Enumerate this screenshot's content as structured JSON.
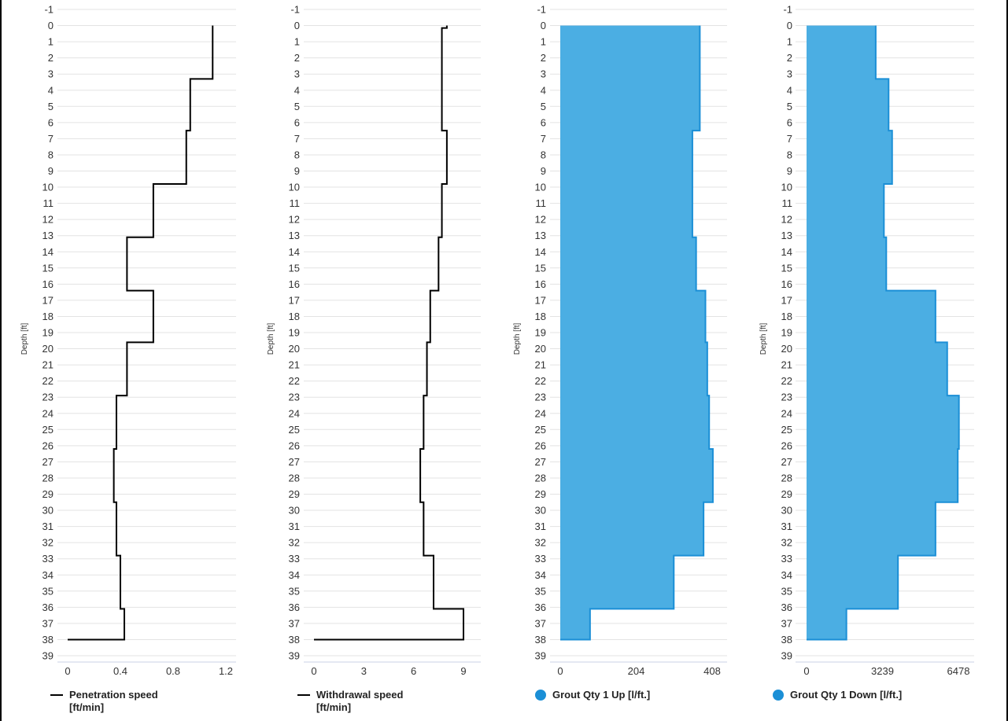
{
  "chart_data": [
    {
      "type": "line",
      "step": true,
      "orientation": "vertical-depth",
      "series": [
        {
          "name": "Penetration speed\n[ft/min]",
          "color": "#000000"
        }
      ],
      "xlabel": "",
      "ylabel": "Depth [ft]",
      "xlim": [
        0,
        1.2
      ],
      "xticks": [
        0,
        0.4,
        0.8,
        1.2
      ],
      "xtick_labels": [
        "0",
        "0.4",
        "0.8",
        "1.2"
      ],
      "ylim": [
        -1,
        39
      ],
      "steps": [
        [
          0,
          1.1
        ],
        [
          3.3,
          0.93
        ],
        [
          6.5,
          0.9
        ],
        [
          9.8,
          0.65
        ],
        [
          13.1,
          0.45
        ],
        [
          16.4,
          0.65
        ],
        [
          19.6,
          0.45
        ],
        [
          22.9,
          0.37
        ],
        [
          26.2,
          0.35
        ],
        [
          29.5,
          0.37
        ],
        [
          32.8,
          0.4
        ],
        [
          36.1,
          0.43
        ],
        [
          38,
          0.0
        ]
      ]
    },
    {
      "type": "line",
      "step": true,
      "orientation": "vertical-depth",
      "series": [
        {
          "name": "Withdrawal speed\n[ft/min]",
          "color": "#000000"
        }
      ],
      "xlabel": "",
      "ylabel": "Depth [ft]",
      "xlim": [
        0,
        9
      ],
      "xticks": [
        0,
        3,
        6,
        9
      ],
      "xtick_labels": [
        "0",
        "3",
        "6",
        "9"
      ],
      "ylim": [
        -1,
        39
      ],
      "steps": [
        [
          0,
          8.0
        ],
        [
          0.15,
          7.7
        ],
        [
          6.5,
          8.0
        ],
        [
          9.8,
          7.7
        ],
        [
          13.1,
          7.5
        ],
        [
          16.4,
          7.0
        ],
        [
          19.6,
          6.8
        ],
        [
          22.9,
          6.6
        ],
        [
          26.2,
          6.4
        ],
        [
          29.5,
          6.6
        ],
        [
          32.8,
          7.2
        ],
        [
          36.1,
          9.0
        ],
        [
          38,
          0.0
        ]
      ]
    },
    {
      "type": "area",
      "step": true,
      "orientation": "vertical-depth",
      "series": [
        {
          "name": "Grout Qty 1 Up [l/ft.]",
          "color": "#4BAEE3",
          "stroke": "#1B8FD6"
        }
      ],
      "xlabel": "",
      "ylabel": "Depth [ft]",
      "xlim": [
        0,
        408
      ],
      "xticks": [
        0,
        204,
        408
      ],
      "xtick_labels": [
        "0",
        "204",
        "408"
      ],
      "ylim": [
        -1,
        39
      ],
      "steps": [
        [
          0,
          375
        ],
        [
          6.5,
          355
        ],
        [
          13.1,
          365
        ],
        [
          16.4,
          390
        ],
        [
          19.6,
          395
        ],
        [
          22.9,
          400
        ],
        [
          26.2,
          410
        ],
        [
          29.5,
          385
        ],
        [
          32.8,
          305
        ],
        [
          36.1,
          80
        ],
        [
          38,
          0
        ]
      ]
    },
    {
      "type": "area",
      "step": true,
      "orientation": "vertical-depth",
      "series": [
        {
          "name": "Grout Qty 1 Down [l/ft.]",
          "color": "#4BAEE3",
          "stroke": "#1B8FD6"
        }
      ],
      "xlabel": "",
      "ylabel": "Depth [ft]",
      "xlim": [
        0,
        6478
      ],
      "xticks": [
        0,
        3239,
        6478
      ],
      "xtick_labels": [
        "0",
        "3239",
        "6478"
      ],
      "ylim": [
        -1,
        39
      ],
      "steps": [
        [
          0,
          2950
        ],
        [
          3.3,
          3500
        ],
        [
          6.5,
          3650
        ],
        [
          9.8,
          3300
        ],
        [
          13.1,
          3400
        ],
        [
          16.4,
          5500
        ],
        [
          19.6,
          6000
        ],
        [
          22.9,
          6500
        ],
        [
          26.2,
          6450
        ],
        [
          29.5,
          5500
        ],
        [
          32.8,
          3900
        ],
        [
          36.1,
          1700
        ],
        [
          38,
          0
        ]
      ]
    }
  ]
}
